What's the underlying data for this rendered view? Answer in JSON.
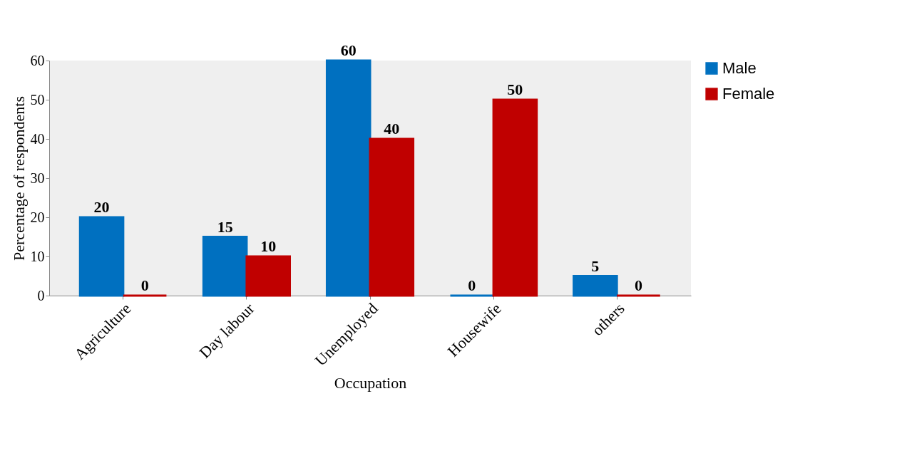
{
  "chart_data": {
    "type": "bar",
    "xlabel": "Occupation",
    "ylabel": "Percentage of respondents",
    "categories": [
      "Agriculture",
      "Day labour",
      "Unemployed",
      "Housewife",
      "others"
    ],
    "series": [
      {
        "name": "Male",
        "color": "#0070c0",
        "values": [
          20,
          15,
          60,
          0,
          5
        ]
      },
      {
        "name": "Female",
        "color": "#c00000",
        "values": [
          0,
          10,
          40,
          50,
          0
        ]
      }
    ],
    "ylim": [
      0,
      60
    ],
    "yticks": [
      0,
      10,
      20,
      30,
      40,
      50,
      60
    ],
    "grid": false,
    "legend": "right",
    "data_labels": true
  }
}
